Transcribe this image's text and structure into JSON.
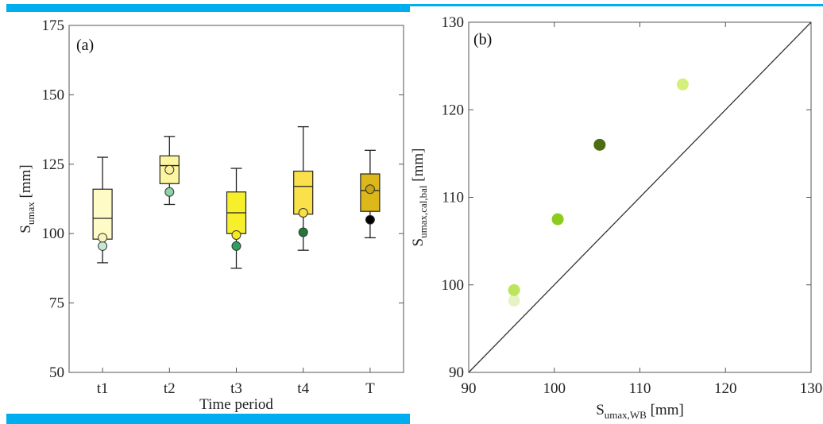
{
  "chart_data": [
    {
      "type": "box",
      "panel_label": "(a)",
      "xlabel": "Time period",
      "ylabel": "S",
      "ylabel_sub": "umax",
      "ylabel_unit": " [mm]",
      "ylim": [
        50,
        175
      ],
      "yticks": [
        50,
        75,
        100,
        125,
        150,
        175
      ],
      "grid": false,
      "categories": [
        "t1",
        "t2",
        "t3",
        "t4",
        "T"
      ],
      "boxes": [
        {
          "category": "t1",
          "min": 89.5,
          "q1": 98.0,
          "median": 105.5,
          "q3": 116.0,
          "max": 127.5,
          "mean": 98.5,
          "point": 95.5,
          "fill": "#fefbc6",
          "mean_color": "#f8f4b6",
          "point_color": "#c8e6d4"
        },
        {
          "category": "t2",
          "min": 110.5,
          "q1": 118.0,
          "median": 124.5,
          "q3": 128.0,
          "max": 135.0,
          "mean": 123.0,
          "point": 115.0,
          "fill": "#fdf6a0",
          "mean_color": "#fdf29a",
          "point_color": "#8fd1a9"
        },
        {
          "category": "t3",
          "min": 87.5,
          "q1": 100.0,
          "median": 107.5,
          "q3": 115.0,
          "max": 123.5,
          "mean": 99.5,
          "point": 95.5,
          "fill": "#f7ef2a",
          "mean_color": "#f5ea20",
          "point_color": "#2fa060"
        },
        {
          "category": "t4",
          "min": 94.0,
          "q1": 107.0,
          "median": 117.0,
          "q3": 122.5,
          "max": 138.5,
          "mean": 107.5,
          "point": 100.5,
          "fill": "#fae04a",
          "mean_color": "#f8e040",
          "point_color": "#1f7a3a"
        },
        {
          "category": "T",
          "min": 98.5,
          "q1": 108.0,
          "median": 115.5,
          "q3": 121.5,
          "max": 130.0,
          "mean": 116.0,
          "point": 105.0,
          "fill": "#dcb81a",
          "mean_color": "#c9a414",
          "point_color": "#000000"
        }
      ]
    },
    {
      "type": "scatter",
      "panel_label": "(b)",
      "xlabel": "S",
      "xlabel_sub": "umax,WB",
      "xlabel_unit": " [mm]",
      "ylabel": "S",
      "ylabel_sub": "umax,cal,bal",
      "ylabel_unit": " [mm]",
      "xlim": [
        90,
        130
      ],
      "ylim": [
        90,
        130
      ],
      "xticks": [
        90,
        100,
        110,
        120,
        130
      ],
      "yticks": [
        90,
        100,
        110,
        120,
        130
      ],
      "grid": false,
      "reference_line": "1:1",
      "points": [
        {
          "x": 95.3,
          "y": 98.2,
          "color": "#e6f4c4"
        },
        {
          "x": 95.3,
          "y": 99.4,
          "color": "#bde55c"
        },
        {
          "x": 100.4,
          "y": 107.5,
          "color": "#8ccc1c"
        },
        {
          "x": 105.3,
          "y": 116.0,
          "color": "#4a6e10"
        },
        {
          "x": 115.0,
          "y": 122.9,
          "color": "#d4f07a"
        }
      ]
    }
  ]
}
